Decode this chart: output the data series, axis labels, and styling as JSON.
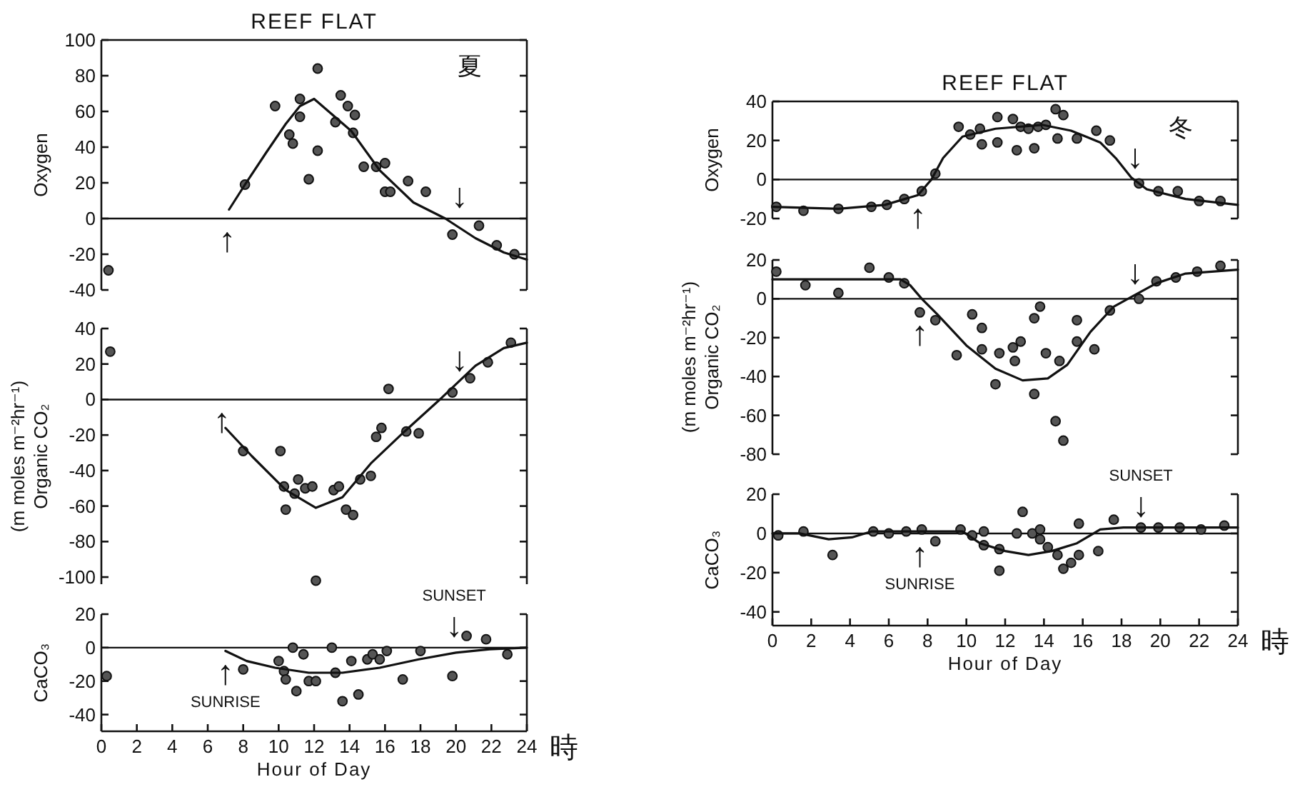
{
  "chart_data": [
    {
      "type": "scatter",
      "title": "REEF FLAT",
      "ylabel": "Oxygen",
      "xlim": [
        0,
        24
      ],
      "ylim": [
        -40,
        100
      ],
      "yticks": [
        -40,
        -20,
        0,
        20,
        40,
        60,
        80,
        100
      ],
      "tick_labels": "y",
      "series": [
        {
          "type": "scatter",
          "marker": "circle",
          "color": "#555555",
          "x": [
            0.4,
            8.1,
            9.8,
            10.6,
            10.8,
            11.2,
            11.2,
            11.7,
            12.2,
            12.2,
            13.2,
            13.5,
            13.9,
            14.2,
            14.3,
            14.8,
            15.5,
            16.0,
            16.0,
            16.3,
            17.3,
            18.3,
            19.8,
            21.3,
            22.3,
            23.3
          ],
          "values": [
            -29,
            19,
            63,
            47,
            42,
            67,
            57,
            22,
            38,
            84,
            54,
            69,
            63,
            48,
            58,
            29,
            29,
            31,
            15,
            15,
            21,
            15,
            -9,
            -4,
            -15,
            -20
          ]
        },
        {
          "type": "line",
          "marker": "none",
          "color": "#111111",
          "x": [
            7.2,
            8.1,
            9.3,
            10.4,
            11.2,
            12.0,
            14.1,
            15.7,
            17.6,
            19.4,
            21.1,
            22.7,
            24
          ],
          "values": [
            5,
            19,
            37,
            53,
            63,
            67,
            49,
            27,
            9,
            0,
            -11,
            -19,
            -23
          ]
        }
      ],
      "ref_lines": [
        {
          "axis": "y",
          "value": 0,
          "color": "#111111"
        }
      ],
      "annotations": [
        "夏",
        {
          "text": "↑",
          "x": 7.1,
          "y": 0
        },
        {
          "text": "↓",
          "x": 20.2,
          "y": 0
        }
      ]
    },
    {
      "type": "scatter",
      "ylabel": "(m moles m⁻²hr⁻¹)\nOrganic CO₂",
      "xlim": [
        0,
        24
      ],
      "ylim": [
        -104,
        40
      ],
      "yticks": [
        -100,
        -80,
        -60,
        -40,
        -20,
        0,
        20,
        40
      ],
      "tick_labels": "y",
      "series": [
        {
          "type": "scatter",
          "marker": "circle",
          "color": "#555555",
          "x": [
            0.5,
            8.0,
            10.1,
            10.3,
            10.4,
            10.9,
            11.1,
            11.5,
            11.9,
            12.1,
            13.1,
            13.4,
            13.8,
            14.2,
            14.6,
            15.2,
            15.5,
            15.8,
            16.2,
            17.2,
            17.9,
            19.8,
            20.8,
            21.8,
            23.1
          ],
          "values": [
            27,
            -29,
            -29,
            -49,
            -62,
            -53,
            -45,
            -50,
            -49,
            -102,
            -51,
            -49,
            -62,
            -65,
            -45,
            -43,
            -21,
            -16,
            6,
            -18,
            -19,
            4,
            12,
            21,
            32
          ]
        },
        {
          "type": "line",
          "marker": "none",
          "color": "#111111",
          "x": [
            7.0,
            8.5,
            10.4,
            12.1,
            13.6,
            15.2,
            17.1,
            19.2,
            21.1,
            22.7,
            24
          ],
          "values": [
            -16,
            -32,
            -51,
            -61,
            -55,
            -36,
            -18,
            1,
            19,
            29,
            32
          ]
        }
      ],
      "ref_lines": [
        {
          "axis": "y",
          "value": 0,
          "color": "#111111"
        }
      ],
      "annotations": [
        {
          "text": "↑",
          "x": 6.8,
          "y": 0
        },
        {
          "text": "↓",
          "x": 20.2,
          "y": 10
        }
      ]
    },
    {
      "type": "scatter",
      "xlabel": "Hour of Day",
      "ylabel": "CaCO₃",
      "xlim": [
        0,
        24
      ],
      "ylim": [
        -50,
        20
      ],
      "xticks": [
        0,
        2,
        4,
        6,
        8,
        10,
        12,
        14,
        16,
        18,
        20,
        22,
        24
      ],
      "yticks": [
        -40,
        -20,
        0,
        20
      ],
      "series": [
        {
          "type": "scatter",
          "marker": "circle",
          "color": "#555555",
          "x": [
            0.3,
            8.0,
            10.0,
            10.3,
            10.4,
            10.8,
            11.0,
            11.4,
            11.7,
            12.1,
            13.0,
            13.2,
            13.6,
            14.1,
            14.5,
            15.0,
            15.3,
            15.7,
            16.1,
            17.0,
            18.0,
            19.8,
            20.6,
            21.7,
            22.9
          ],
          "values": [
            -17,
            -13,
            -8,
            -14,
            -19,
            0,
            -26,
            -4,
            -20,
            -20,
            0,
            -15,
            -32,
            -8,
            -28,
            -7,
            -4,
            -7,
            -2,
            -19,
            -2,
            -17,
            7,
            5,
            -4
          ]
        },
        {
          "type": "line",
          "marker": "none",
          "color": "#111111",
          "x": [
            7.0,
            8.2,
            9.8,
            11.7,
            13.6,
            15.7,
            17.9,
            20.0,
            21.9,
            24
          ],
          "values": [
            -2,
            -8,
            -12,
            -15,
            -15,
            -12,
            -7,
            -3,
            -1,
            0
          ]
        }
      ],
      "ref_lines": [
        {
          "axis": "y",
          "value": 0,
          "color": "#111111"
        }
      ],
      "annotations": [
        "時",
        {
          "text": "↑",
          "x": 7.0,
          "y": -2
        },
        {
          "text": "↓",
          "x": 19.9,
          "y": 0
        },
        {
          "text": "SUNRISE",
          "x": 7.0,
          "y": -2
        },
        {
          "text": "SUNSET",
          "x": 19.9,
          "y": 0
        }
      ]
    },
    {
      "type": "scatter",
      "title": "REEF FLAT",
      "ylabel": "Oxygen",
      "xlim": [
        0,
        24
      ],
      "ylim": [
        -20,
        40
      ],
      "yticks": [
        -20,
        0,
        20,
        40
      ],
      "tick_labels": "y",
      "series": [
        {
          "type": "scatter",
          "marker": "circle",
          "color": "#555555",
          "x": [
            0.2,
            1.6,
            3.4,
            5.1,
            5.9,
            6.8,
            7.7,
            8.4,
            9.6,
            10.2,
            10.7,
            10.8,
            11.6,
            11.6,
            12.4,
            12.6,
            12.8,
            13.2,
            13.5,
            13.7,
            14.1,
            14.6,
            15.0,
            14.7,
            15.7,
            16.7,
            17.4,
            18.9,
            19.9,
            20.9,
            22.0,
            23.1
          ],
          "values": [
            -14,
            -16,
            -15,
            -14,
            -13,
            -10,
            -6,
            3,
            27,
            23,
            26,
            18,
            32,
            19,
            31,
            15,
            27,
            26,
            16,
            27,
            28,
            36,
            33,
            21,
            21,
            25,
            20,
            -2,
            -6,
            -6,
            -11,
            -11
          ]
        },
        {
          "type": "line",
          "marker": "none",
          "color": "#111111",
          "x": [
            0,
            3.4,
            5.8,
            7.5,
            8.2,
            8.8,
            9.8,
            11.5,
            13.9,
            15.4,
            16.9,
            17.7,
            18.5,
            19.3,
            21.3,
            24
          ],
          "values": [
            -14,
            -15,
            -13,
            -8,
            0,
            11,
            22,
            26,
            28,
            25,
            19,
            11,
            1,
            -5,
            -10,
            -13
          ]
        }
      ],
      "ref_lines": [
        {
          "axis": "y",
          "value": 0,
          "color": "#111111"
        }
      ],
      "annotations": [
        "冬",
        {
          "text": "↑",
          "x": 7.5,
          "y": -8
        },
        {
          "text": "↓",
          "x": 18.7,
          "y": 0
        }
      ]
    },
    {
      "type": "scatter",
      "ylabel": "(m moles m⁻²hr⁻¹)\nOrganic CO₂",
      "xlim": [
        0,
        24
      ],
      "ylim": [
        -80,
        20
      ],
      "yticks": [
        -80,
        -60,
        -40,
        -20,
        0,
        20
      ],
      "tick_labels": "y",
      "series": [
        {
          "type": "scatter",
          "marker": "circle",
          "color": "#555555",
          "x": [
            0.2,
            1.7,
            3.4,
            5.0,
            6.0,
            6.8,
            7.6,
            8.4,
            9.5,
            10.3,
            10.8,
            10.8,
            11.5,
            11.7,
            12.4,
            12.5,
            12.8,
            13.5,
            13.5,
            13.8,
            14.1,
            14.6,
            14.8,
            15.0,
            15.7,
            15.7,
            16.6,
            17.4,
            18.9,
            19.8,
            20.8,
            21.9,
            23.1
          ],
          "values": [
            14,
            7,
            3,
            16,
            11,
            8,
            -7,
            -11,
            -29,
            -8,
            -26,
            -15,
            -44,
            -28,
            -25,
            -32,
            -22,
            -10,
            -49,
            -4,
            -28,
            -63,
            -32,
            -73,
            -11,
            -22,
            -26,
            -6,
            0,
            9,
            11,
            14,
            17
          ]
        },
        {
          "type": "line",
          "marker": "none",
          "color": "#111111",
          "x": [
            0,
            6.6,
            7.1,
            7.7,
            8.5,
            10.0,
            11.5,
            12.9,
            14.2,
            15.2,
            16.4,
            17.6,
            18.7,
            19.8,
            21.3,
            24
          ],
          "values": [
            10,
            10,
            7,
            0,
            -8,
            -24,
            -36,
            -42,
            -41,
            -34,
            -17,
            -4,
            2,
            8,
            13,
            15
          ]
        }
      ],
      "ref_lines": [
        {
          "axis": "y",
          "value": 0,
          "color": "#111111"
        }
      ],
      "annotations": [
        {
          "text": "↑",
          "x": 7.6,
          "y": -7
        },
        {
          "text": "↓",
          "x": 18.7,
          "y": 2
        }
      ]
    },
    {
      "type": "scatter",
      "xlabel": "Hour of Day",
      "ylabel": "CaCO₃",
      "xlim": [
        0,
        24
      ],
      "ylim": [
        -47,
        20
      ],
      "xticks": [
        0,
        2,
        4,
        6,
        8,
        10,
        12,
        14,
        16,
        18,
        20,
        22,
        24
      ],
      "yticks": [
        -40,
        -20,
        0,
        20
      ],
      "series": [
        {
          "type": "scatter",
          "marker": "circle",
          "color": "#555555",
          "x": [
            0.3,
            1.6,
            3.1,
            5.2,
            6.0,
            6.9,
            7.7,
            8.4,
            9.7,
            10.3,
            10.9,
            10.9,
            11.7,
            11.7,
            12.6,
            12.9,
            13.4,
            13.8,
            13.8,
            14.2,
            14.7,
            15.0,
            15.4,
            15.8,
            15.8,
            16.8,
            17.6,
            19.0,
            19.9,
            21.0,
            22.1,
            23.3
          ],
          "values": [
            -1,
            1,
            -11,
            1,
            0,
            1,
            2,
            -4,
            2,
            -1,
            1,
            -6,
            -8,
            -19,
            0,
            11,
            0,
            2,
            -3,
            -7,
            -11,
            -18,
            -15,
            5,
            -11,
            -9,
            7,
            3,
            3,
            3,
            2,
            4
          ]
        },
        {
          "type": "line",
          "marker": "none",
          "color": "#111111",
          "x": [
            0,
            1.4,
            2.9,
            4.1,
            5.1,
            9.8,
            10.7,
            12.0,
            13.2,
            14.4,
            15.7,
            16.9,
            18.1,
            24
          ],
          "values": [
            0,
            0,
            -3,
            -2,
            1,
            1,
            -5,
            -9,
            -11,
            -9,
            -5,
            2,
            3,
            3
          ]
        }
      ],
      "ref_lines": [
        {
          "axis": "y",
          "value": 0,
          "color": "#111111"
        }
      ],
      "annotations": [
        "時",
        {
          "text": "↑",
          "x": 7.6,
          "y": 0
        },
        {
          "text": "↓",
          "x": 19.0,
          "y": 3
        },
        {
          "text": "SUNRISE",
          "x": 7.6,
          "y": 0
        },
        {
          "text": "SUNSET",
          "x": 19.0,
          "y": 3
        }
      ]
    }
  ]
}
